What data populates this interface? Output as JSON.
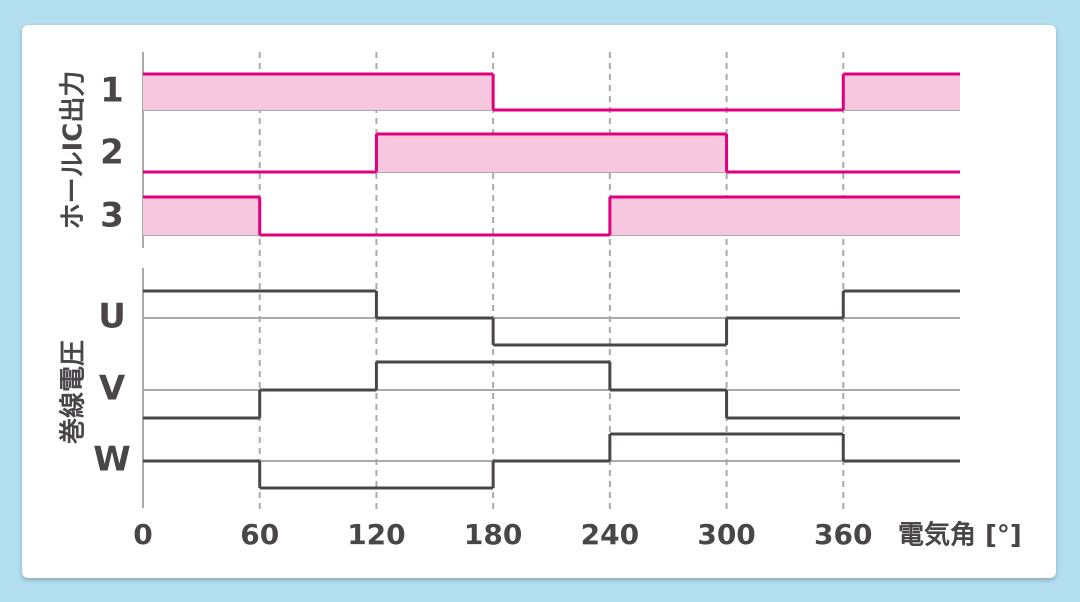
{
  "chart_data": {
    "type": "step",
    "xlabel": "電気角 [°]",
    "xlim": [
      0,
      420
    ],
    "xticks": [
      0,
      60,
      120,
      180,
      240,
      300,
      360
    ],
    "groups": [
      {
        "label": "ホールIC出力",
        "ylim": [
          0,
          1
        ],
        "series": [
          {
            "name": "1",
            "color": "#e0007f",
            "fill": "#f7c6df",
            "x": [
              0,
              180,
              360,
              420
            ],
            "values": [
              1,
              0,
              1,
              1
            ]
          },
          {
            "name": "2",
            "color": "#e0007f",
            "fill": "#f7c6df",
            "x": [
              0,
              120,
              300,
              420
            ],
            "values": [
              0,
              1,
              0,
              0
            ]
          },
          {
            "name": "3",
            "color": "#e0007f",
            "fill": "#f7c6df",
            "x": [
              0,
              60,
              240,
              420
            ],
            "values": [
              1,
              0,
              1,
              1
            ]
          }
        ]
      },
      {
        "label": "巻線電圧",
        "ylim": [
          -1,
          1
        ],
        "series": [
          {
            "name": "U",
            "color": "#4a4548",
            "x": [
              0,
              120,
              180,
              300,
              360,
              420
            ],
            "values": [
              1,
              0,
              -1,
              0,
              1,
              1
            ]
          },
          {
            "name": "V",
            "color": "#4a4548",
            "x": [
              0,
              60,
              120,
              240,
              300,
              420
            ],
            "values": [
              -1,
              0,
              1,
              0,
              -1,
              -1
            ]
          },
          {
            "name": "W",
            "color": "#4a4548",
            "x": [
              0,
              60,
              180,
              240,
              360,
              420
            ],
            "values": [
              0,
              -1,
              0,
              1,
              0,
              0
            ]
          }
        ]
      }
    ]
  }
}
